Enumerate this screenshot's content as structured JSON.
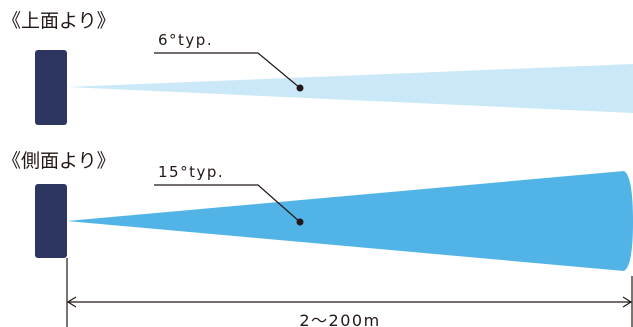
{
  "top_view": {
    "title": "《上面より》",
    "angle_label": "6°typ."
  },
  "side_view": {
    "title": "《側面より》",
    "angle_label": "15°typ."
  },
  "range_label": "2～200m",
  "colors": {
    "sensor_body": "#2d3561",
    "beam_narrow": "#cbe8f8",
    "beam_wide": "#52b3e6",
    "line": "#231815",
    "text": "#231815"
  }
}
